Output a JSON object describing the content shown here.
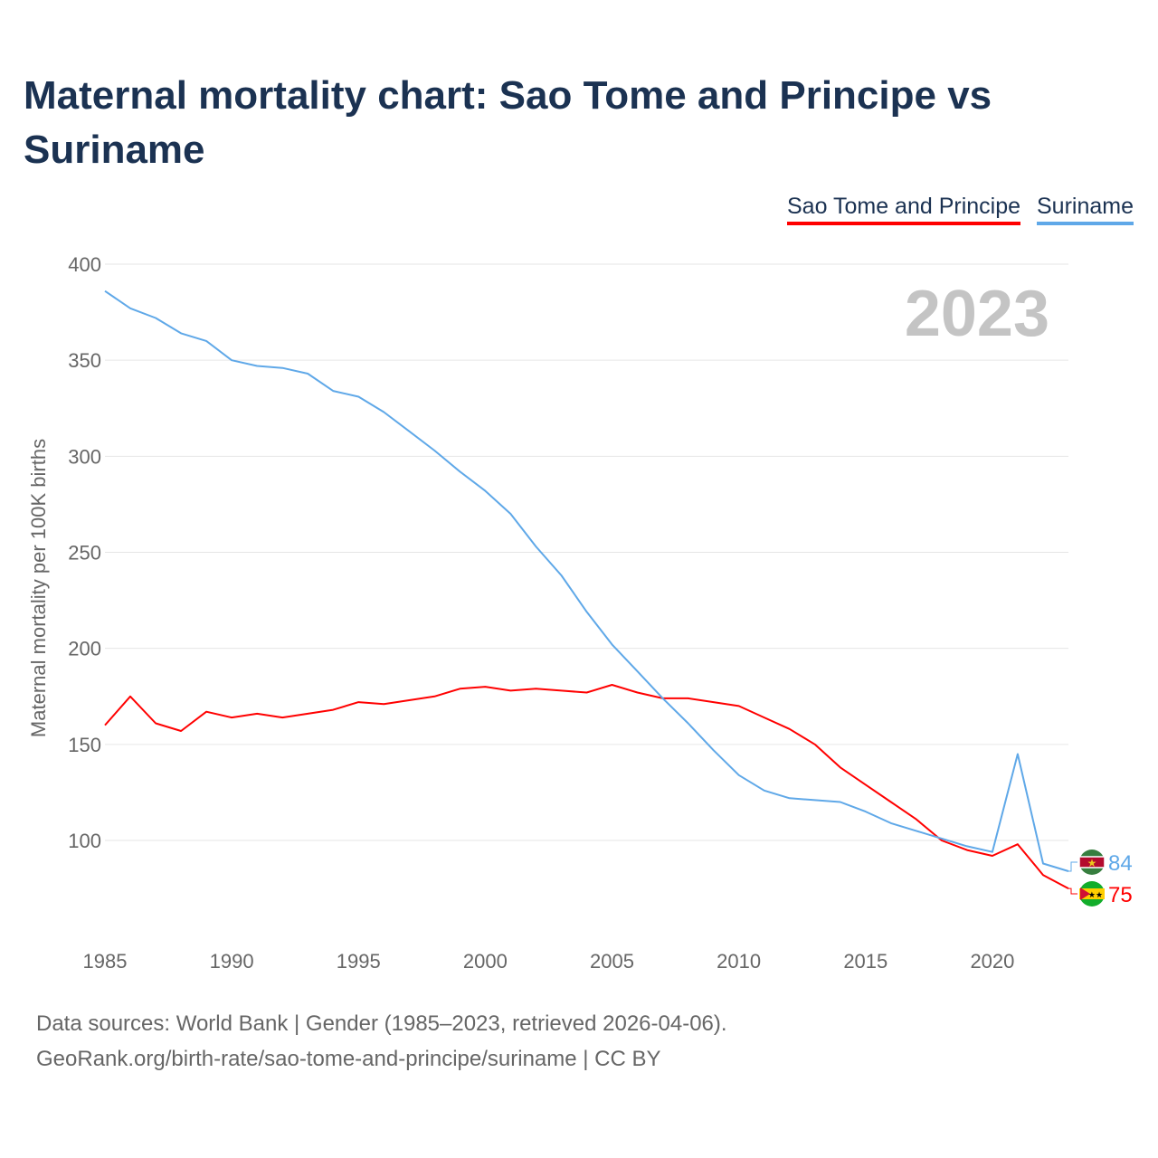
{
  "chart_data": {
    "type": "line",
    "title": "Maternal mortality chart: Sao Tome and Principe vs Suriname",
    "xlabel": "",
    "ylabel": "Maternal mortality per 100K births",
    "xlim": [
      1985,
      2023
    ],
    "ylim": [
      60,
      400
    ],
    "yticks": [
      100,
      150,
      200,
      250,
      300,
      350,
      400
    ],
    "xticks": [
      1985,
      1990,
      1995,
      2000,
      2005,
      2010,
      2015,
      2020
    ],
    "grid": true,
    "legend_position": "top-right",
    "year_label": "2023",
    "x": [
      1985,
      1986,
      1987,
      1988,
      1989,
      1990,
      1991,
      1992,
      1993,
      1994,
      1995,
      1996,
      1997,
      1998,
      1999,
      2000,
      2001,
      2002,
      2003,
      2004,
      2005,
      2006,
      2007,
      2008,
      2009,
      2010,
      2011,
      2012,
      2013,
      2014,
      2015,
      2016,
      2017,
      2018,
      2019,
      2020,
      2021,
      2022,
      2023
    ],
    "series": [
      {
        "name": "Sao Tome and Principe",
        "color": "#ff0000",
        "end_label": "75",
        "values": [
          160,
          175,
          161,
          157,
          167,
          164,
          166,
          164,
          166,
          168,
          172,
          171,
          173,
          175,
          179,
          180,
          178,
          179,
          178,
          177,
          181,
          177,
          174,
          174,
          172,
          170,
          164,
          158,
          150,
          138,
          129,
          120,
          111,
          100,
          95,
          92,
          98,
          82,
          75
        ]
      },
      {
        "name": "Suriname",
        "color": "#5fa8e8",
        "end_label": "84",
        "values": [
          386,
          377,
          372,
          364,
          360,
          350,
          347,
          346,
          343,
          334,
          331,
          323,
          313,
          303,
          292,
          282,
          270,
          253,
          238,
          219,
          202,
          188,
          174,
          161,
          147,
          134,
          126,
          122,
          121,
          120,
          115,
          109,
          105,
          101,
          97,
          94,
          145,
          88,
          84
        ]
      }
    ]
  },
  "footer": {
    "line1": "Data sources: World Bank | Gender (1985–2023, retrieved 2026-04-06).",
    "line2": "GeoRank.org/birth-rate/sao-tome-and-principe/suriname | CC BY"
  }
}
